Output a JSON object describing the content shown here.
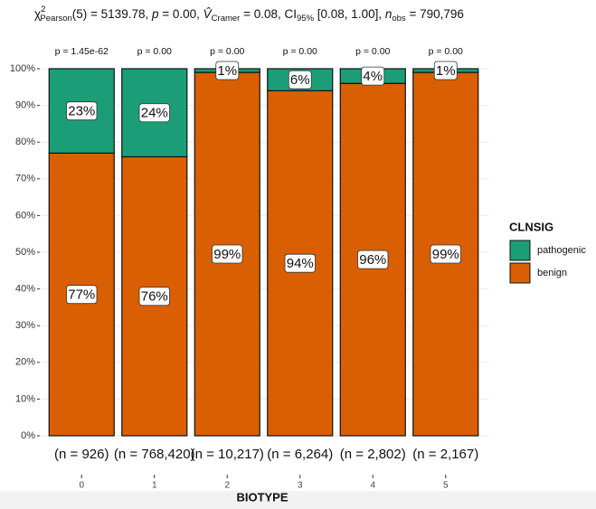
{
  "chart_data": {
    "type": "stacked_bar",
    "title_parts": [
      "χ",
      "2",
      "Pearson",
      "(5) = 5139.78, ",
      "p",
      " = 0.00, ",
      "V̂",
      "Cramer",
      " = 0.08, CI",
      "95%",
      " [0.08, 1.00], ",
      "n",
      "obs",
      " = 790,796"
    ],
    "x_label": "BIOTYPE",
    "legend_title": "CLNSIG",
    "categories": [
      "0",
      "1",
      "2",
      "3",
      "4",
      "5"
    ],
    "pvalue_labels": [
      "p = 1.45e-62",
      "p = 0.00",
      "p = 0.00",
      "p = 0.00",
      "p = 0.00",
      "p = 0.00"
    ],
    "n_labels": [
      "(n = 926)",
      "(n = 768,420)",
      "(n = 10,217)",
      "(n = 6,264)",
      "(n = 2,802)",
      "(n = 2,167)"
    ],
    "series": [
      {
        "name": "benign",
        "color": "#d95f02",
        "values": [
          77,
          76,
          99,
          94,
          96,
          99
        ],
        "value_labels": [
          "77%",
          "76%",
          "99%",
          "94%",
          "96%",
          "99%"
        ]
      },
      {
        "name": "pathogenic",
        "color": "#1b9e77",
        "values": [
          23,
          24,
          1,
          6,
          4,
          1
        ],
        "value_labels": [
          "23%",
          "24%",
          "1%",
          "6%",
          "4%",
          "1%"
        ]
      }
    ],
    "ylim": [
      0,
      100
    ],
    "yticks": [
      {
        "value": 0,
        "label": "0%"
      },
      {
        "value": 10,
        "label": "10%"
      },
      {
        "value": 20,
        "label": "20%"
      },
      {
        "value": 30,
        "label": "30%"
      },
      {
        "value": 40,
        "label": "40%"
      },
      {
        "value": 50,
        "label": "50%"
      },
      {
        "value": 60,
        "label": "60%"
      },
      {
        "value": 70,
        "label": "70%"
      },
      {
        "value": 80,
        "label": "80%"
      },
      {
        "value": 90,
        "label": "90%"
      },
      {
        "value": 100,
        "label": "100%"
      }
    ],
    "grid": true
  }
}
